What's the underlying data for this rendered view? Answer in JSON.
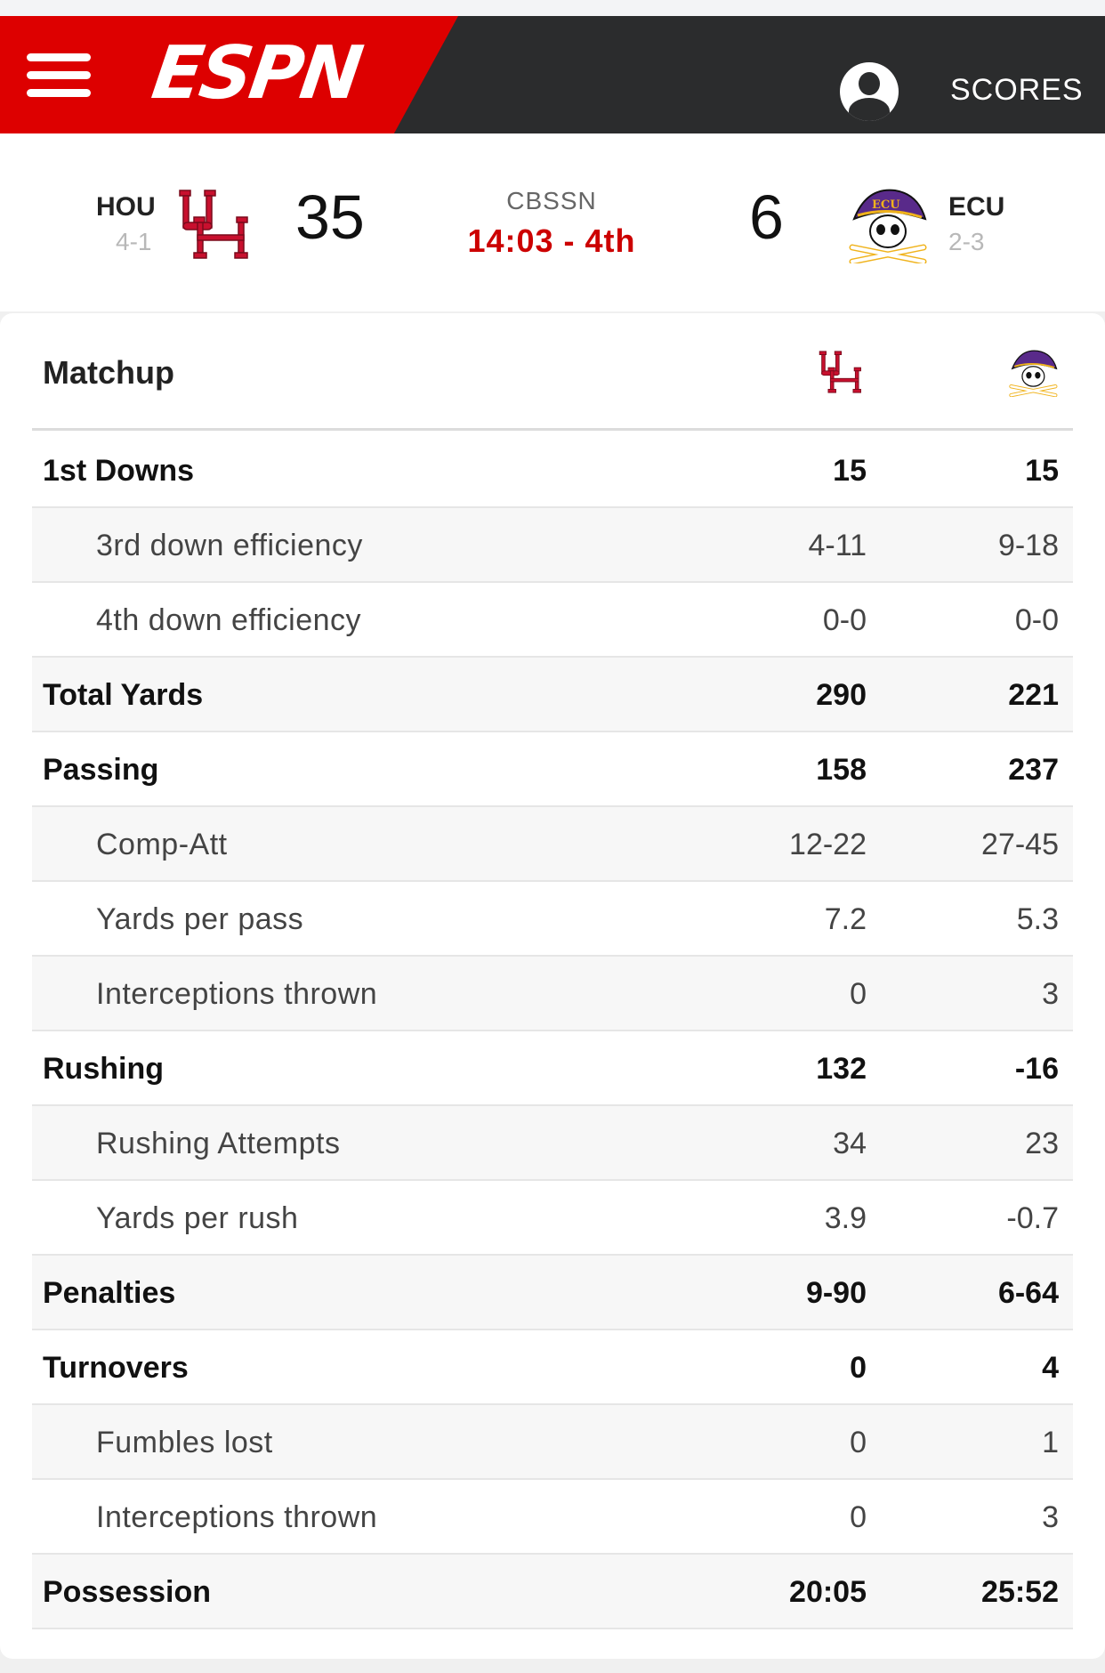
{
  "header": {
    "brand": "ESPN",
    "scores_label": "SCORES",
    "colors": {
      "brand_red": "#dd0000",
      "header_dark": "#2b2c2d"
    }
  },
  "game": {
    "network": "CBSSN",
    "clock": "14:03 - 4th",
    "home": {
      "abbr": "HOU",
      "record": "4-1",
      "score": "35",
      "logo": "uh-logo-icon",
      "color": "#c8102e"
    },
    "away": {
      "abbr": "ECU",
      "record": "2-3",
      "score": "6",
      "logo": "ecu-pirate-logo-icon",
      "color": "#592a8a"
    }
  },
  "matchup": {
    "title": "Matchup",
    "rows": [
      {
        "label": "1st Downs",
        "hou": "15",
        "ecu": "15",
        "level": "main"
      },
      {
        "label": "3rd down efficiency",
        "hou": "4-11",
        "ecu": "9-18",
        "level": "sub"
      },
      {
        "label": "4th down efficiency",
        "hou": "0-0",
        "ecu": "0-0",
        "level": "sub"
      },
      {
        "label": "Total Yards",
        "hou": "290",
        "ecu": "221",
        "level": "main"
      },
      {
        "label": "Passing",
        "hou": "158",
        "ecu": "237",
        "level": "main"
      },
      {
        "label": "Comp-Att",
        "hou": "12-22",
        "ecu": "27-45",
        "level": "sub"
      },
      {
        "label": "Yards per pass",
        "hou": "7.2",
        "ecu": "5.3",
        "level": "sub"
      },
      {
        "label": "Interceptions thrown",
        "hou": "0",
        "ecu": "3",
        "level": "sub"
      },
      {
        "label": "Rushing",
        "hou": "132",
        "ecu": "-16",
        "level": "main"
      },
      {
        "label": "Rushing Attempts",
        "hou": "34",
        "ecu": "23",
        "level": "sub"
      },
      {
        "label": "Yards per rush",
        "hou": "3.9",
        "ecu": "-0.7",
        "level": "sub"
      },
      {
        "label": "Penalties",
        "hou": "9-90",
        "ecu": "6-64",
        "level": "main"
      },
      {
        "label": "Turnovers",
        "hou": "0",
        "ecu": "4",
        "level": "main"
      },
      {
        "label": "Fumbles lost",
        "hou": "0",
        "ecu": "1",
        "level": "sub"
      },
      {
        "label": "Interceptions thrown",
        "hou": "0",
        "ecu": "3",
        "level": "sub"
      },
      {
        "label": "Possession",
        "hou": "20:05",
        "ecu": "25:52",
        "level": "main"
      }
    ]
  }
}
